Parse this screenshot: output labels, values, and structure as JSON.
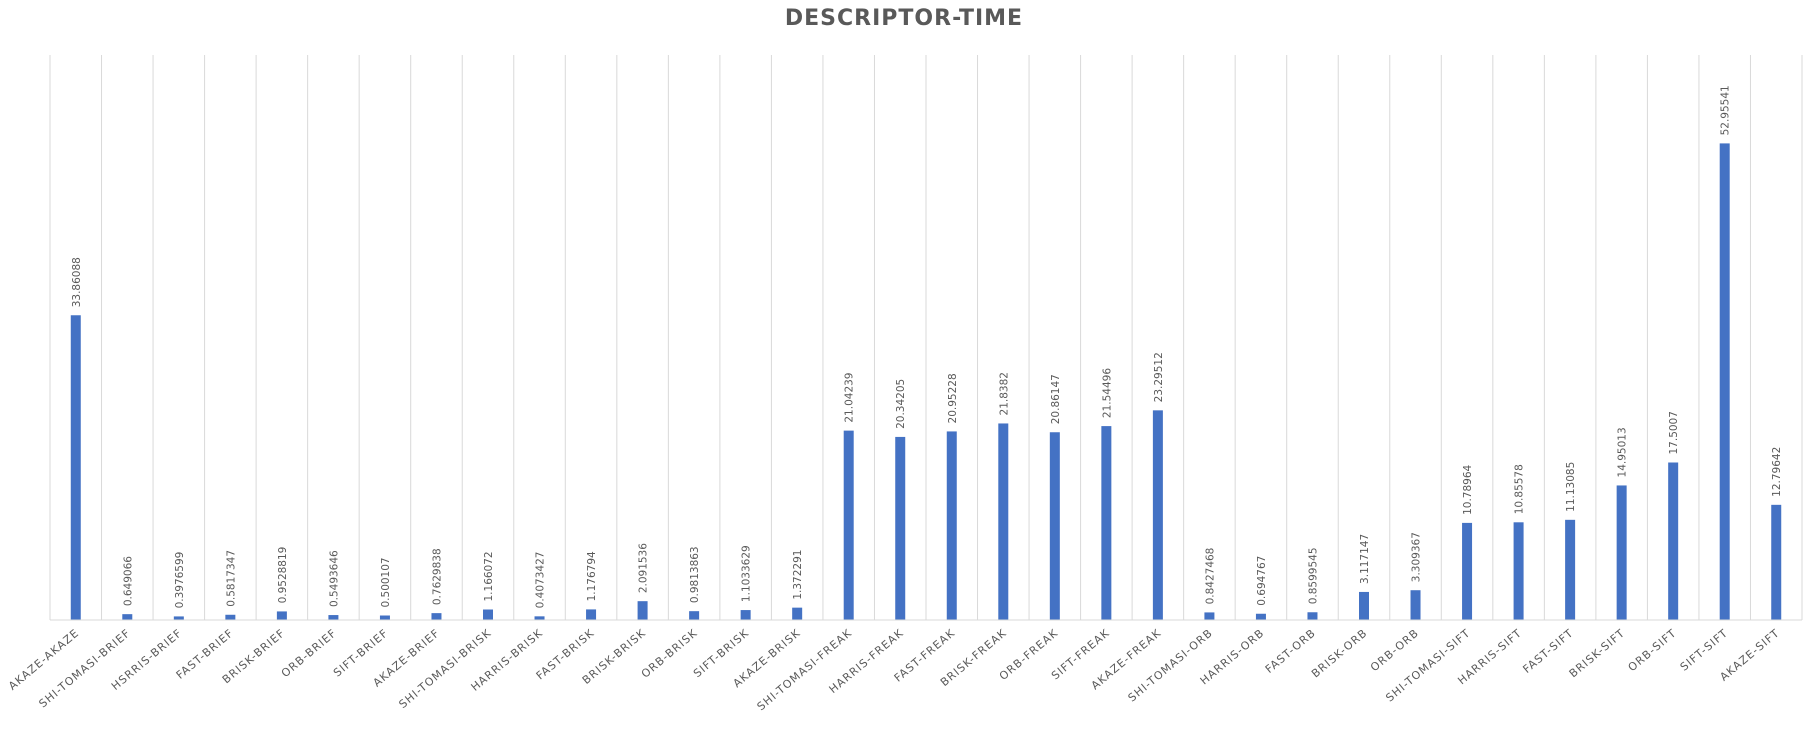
{
  "chart_data": {
    "type": "bar",
    "title": "DESCRIPTOR-TIME",
    "xlabel": "",
    "ylabel": "",
    "ylim": [
      0,
      60
    ],
    "grid": "vertical category gridlines",
    "legend": "none",
    "bar_color": "#4472C4",
    "categories": [
      "AKAZE-AKAZE",
      "SHI-TOMASI-BRIEF",
      "HSRRIS-BRIEF",
      "FAST-BRIEF",
      "BRISK-BRIEF",
      "ORB-BRIEF",
      "SIFT-BRIEF",
      "AKAZE-BRIEF",
      "SHI-TOMASI-BRISK",
      "HARRIS-BRISK",
      "FAST-BRISK",
      "BRISK-BRISK",
      "ORB-BRISK",
      "SIFT-BRISK",
      "AKAZE-BRISK",
      "SHI-TOMASI-FREAK",
      "HARRIS-FREAK",
      "FAST-FREAK",
      "BRISK-FREAK",
      "ORB-FREAK",
      "SIFT-FREAK",
      "AKAZE-FREAK",
      "SHI-TOMASI-ORB",
      "HARRIS-ORB",
      "FAST-ORB",
      "BRISK-ORB",
      "ORB-ORB",
      "SHI-TOMASI-SIFT",
      "HARRIS-SIFT",
      "FAST-SIFT",
      "BRISK-SIFT",
      "ORB-SIFT",
      "SIFT-SIFT",
      "AKAZE-SIFT"
    ],
    "values": [
      33.86088,
      0.649066,
      0.3976599,
      0.5817347,
      0.9528819,
      0.5493646,
      0.500107,
      0.7629838,
      1.166072,
      0.4073427,
      1.176794,
      2.091536,
      0.9813863,
      1.1033629,
      1.372291,
      21.04239,
      20.34205,
      20.95228,
      21.8382,
      20.86147,
      21.54496,
      23.29512,
      0.8427468,
      0.694767,
      0.8599545,
      3.117147,
      3.309367,
      10.78964,
      10.85578,
      11.13085,
      14.95013,
      17.5007,
      52.95541,
      12.79642
    ],
    "data_labels": [
      "33.86088",
      "0.649066",
      "0.3976599",
      "0.5817347",
      "0.9528819",
      "0.5493646",
      "0.500107",
      "0.7629838",
      "1.166072",
      "0.4073427",
      "1.176794",
      "2.091536",
      "0.9813863",
      "1.1033629",
      "1.372291",
      "21.04239",
      "20.34205",
      "20.95228",
      "21.8382",
      "20.86147",
      "21.54496",
      "23.29512",
      "0.8427468",
      "0.694767",
      "0.8599545",
      "3.117147",
      "3.309367",
      "10.78964",
      "10.85578",
      "11.13085",
      "14.95013",
      "17.5007",
      "52.95541",
      "12.79642"
    ]
  }
}
